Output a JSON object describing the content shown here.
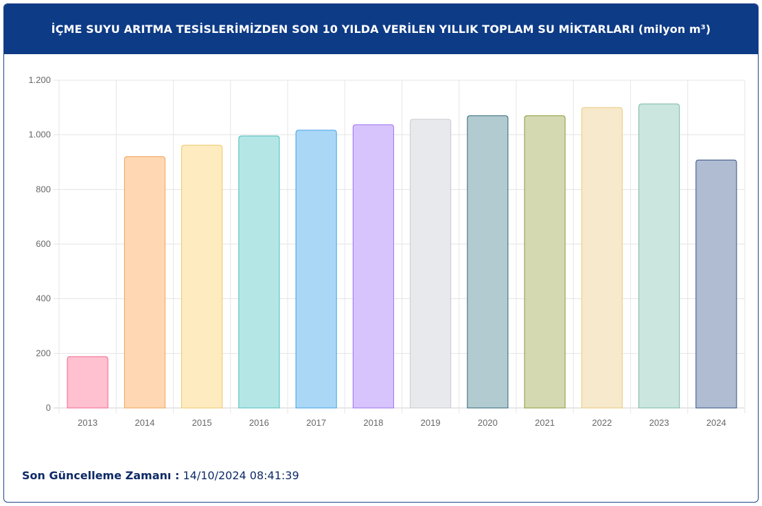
{
  "header": {
    "title": "İÇME SUYU ARITMA TESİSLERİMİZDEN SON 10 YILDA VERİLEN YILLIK TOPLAM SU MİKTARLARI (milyon m³)"
  },
  "footer": {
    "label": "Son Güncelleme Zamanı :",
    "value": "14/10/2024 08:41:39"
  },
  "chart_data": {
    "type": "bar",
    "categories": [
      "2013",
      "2014",
      "2015",
      "2016",
      "2017",
      "2018",
      "2019",
      "2020",
      "2021",
      "2022",
      "2023",
      "2024"
    ],
    "values": [
      188,
      920,
      962,
      996,
      1017,
      1037,
      1057,
      1070,
      1070,
      1100,
      1113,
      908
    ],
    "ylim": [
      0,
      1200
    ],
    "yticks": [
      0,
      200,
      400,
      600,
      800,
      1000,
      1200
    ],
    "ytick_labels": [
      "0",
      "200",
      "400",
      "600",
      "800",
      "1.000",
      "1.200"
    ],
    "grid": true,
    "colors": {
      "fill": [
        "#ffc0cf",
        "#ffd8b3",
        "#ffebc0",
        "#b5e6e6",
        "#abd7f7",
        "#d7c4fd",
        "#e8e9ec",
        "#b2cbd0",
        "#d4d9b2",
        "#f7e9cb",
        "#cae6df",
        "#afbcd1"
      ],
      "stroke": [
        "#f0668c",
        "#ef9f57",
        "#ebc766",
        "#4bbcbc",
        "#3ea2e3",
        "#9b6ff0",
        "#c8cacf",
        "#2e6575",
        "#8d9733",
        "#e8c87c",
        "#79b7a3",
        "#344f85"
      ]
    }
  }
}
